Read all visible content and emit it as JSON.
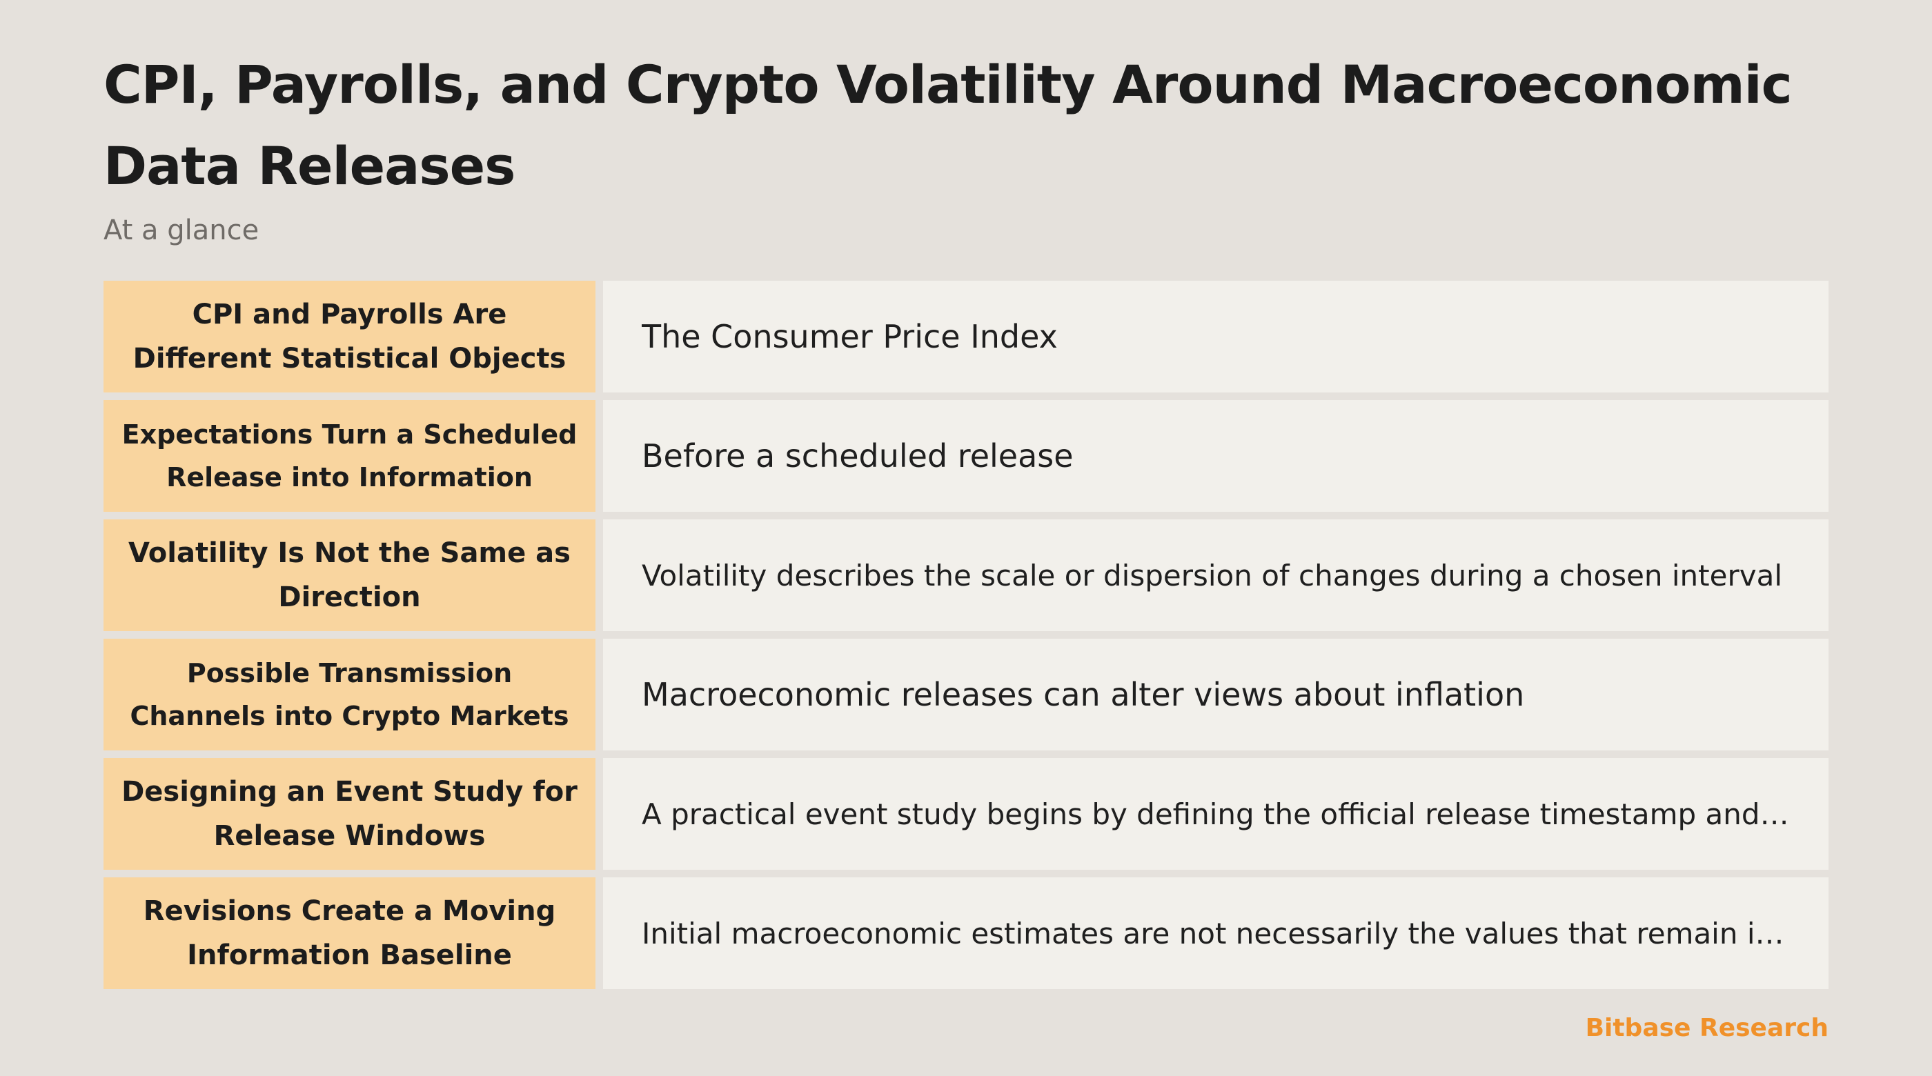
{
  "title": "CPI, Payrolls, and Crypto Volatility Around Macroeconomic Data Releases",
  "subtitle": "At a glance",
  "rows": [
    {
      "label": "CPI and Payrolls Are Different Statistical Objects",
      "value": "The Consumer Price Index"
    },
    {
      "label": "Expectations Turn a Scheduled Release into Information",
      "value": "Before a scheduled release"
    },
    {
      "label": "Volatility Is Not the Same as Direction",
      "value": "Volatility describes the scale or dispersion of changes during a chosen interval"
    },
    {
      "label": "Possible Transmission Channels into Crypto Markets",
      "value": "Macroeconomic releases can alter views about inflation"
    },
    {
      "label": "Designing an Event Study for Release Windows",
      "value": "A practical event study begins by defining the official release timestamp and…"
    },
    {
      "label": "Revisions Create a Moving Information Baseline",
      "value": "Initial macroeconomic estimates are not necessarily the values that remain in…"
    }
  ],
  "footer": {
    "brand": "Bitbase Research"
  },
  "colors": {
    "background": "#e5e1dc",
    "label_fill": "#f9d59f",
    "value_fill": "#f2f0eb",
    "brand": "#f0912a"
  }
}
